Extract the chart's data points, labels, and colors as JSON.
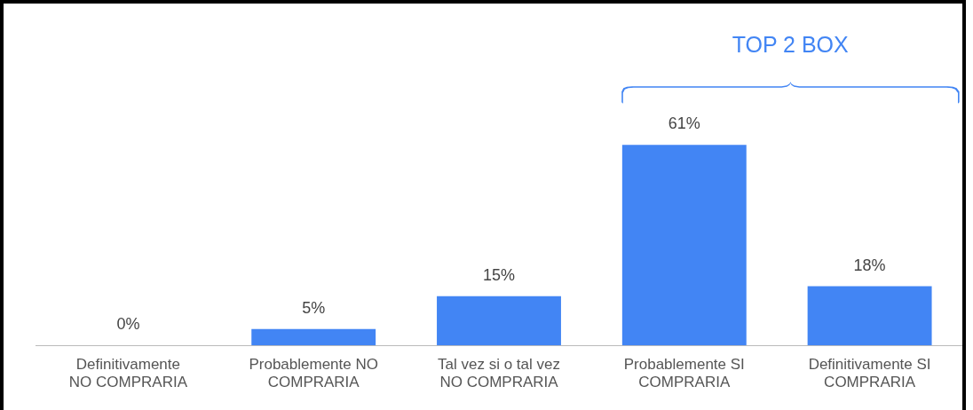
{
  "chart_data": {
    "type": "bar",
    "categories": [
      "Definitivamente NO COMPRARIA",
      "Probablemente NO COMPRARIA",
      "Tal vez si o tal vez NO COMPRARIA",
      "Probablemente SI COMPRARIA",
      "Definitivamente SI COMPRARIA"
    ],
    "values": [
      0,
      5,
      15,
      61,
      18
    ],
    "value_labels": [
      "0%",
      "5%",
      "15%",
      "61%",
      "18%"
    ],
    "color": "#4285f4",
    "annotations": [
      "TOP 2 BOX"
    ],
    "tick_labels": "x",
    "grid": false,
    "legend": false
  }
}
